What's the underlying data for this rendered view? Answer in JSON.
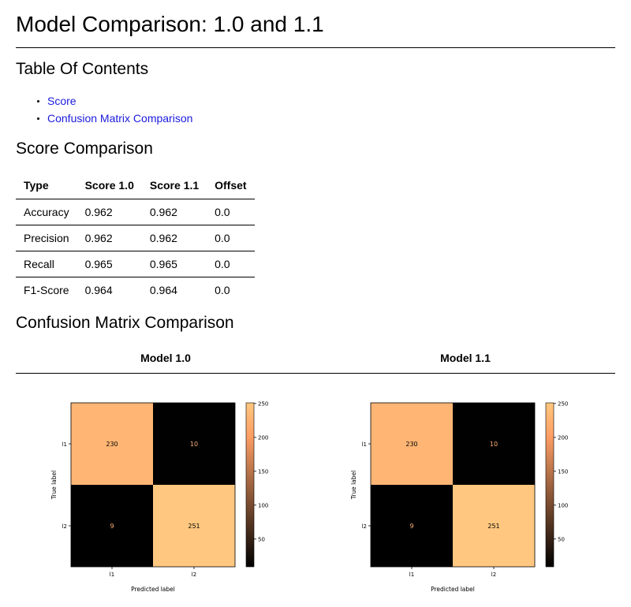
{
  "title": "Model Comparison: 1.0 and 1.1",
  "toc": {
    "heading": "Table Of Contents",
    "items": [
      "Score",
      "Confusion Matrix Comparison"
    ]
  },
  "scores": {
    "heading": "Score Comparison",
    "columns": [
      "Type",
      "Score 1.0",
      "Score 1.1",
      "Offset"
    ],
    "rows": [
      [
        "Accuracy",
        "0.962",
        "0.962",
        "0.0"
      ],
      [
        "Precision",
        "0.962",
        "0.962",
        "0.0"
      ],
      [
        "Recall",
        "0.965",
        "0.965",
        "0.0"
      ],
      [
        "F1-Score",
        "0.964",
        "0.964",
        "0.0"
      ]
    ]
  },
  "confusion": {
    "heading": "Confusion Matrix Comparison",
    "model_labels": [
      "Model 1.0",
      "Model 1.1"
    ]
  },
  "chart_data": [
    {
      "type": "heatmap",
      "title": "",
      "xlabel": "Predicted label",
      "ylabel": "True label",
      "x_categories": [
        "l1",
        "l2"
      ],
      "y_categories": [
        "l1",
        "l2"
      ],
      "values": [
        [
          230,
          10
        ],
        [
          9,
          251
        ]
      ],
      "colormap": "copper",
      "colorbar_ticks": [
        50,
        100,
        150,
        200,
        250
      ],
      "color_range": [
        9,
        251
      ]
    },
    {
      "type": "heatmap",
      "title": "",
      "xlabel": "Predicted label",
      "ylabel": "True label",
      "x_categories": [
        "l1",
        "l2"
      ],
      "y_categories": [
        "l1",
        "l2"
      ],
      "values": [
        [
          230,
          10
        ],
        [
          9,
          251
        ]
      ],
      "colormap": "copper",
      "colorbar_ticks": [
        50,
        100,
        150,
        200,
        250
      ],
      "color_range": [
        9,
        251
      ]
    }
  ]
}
